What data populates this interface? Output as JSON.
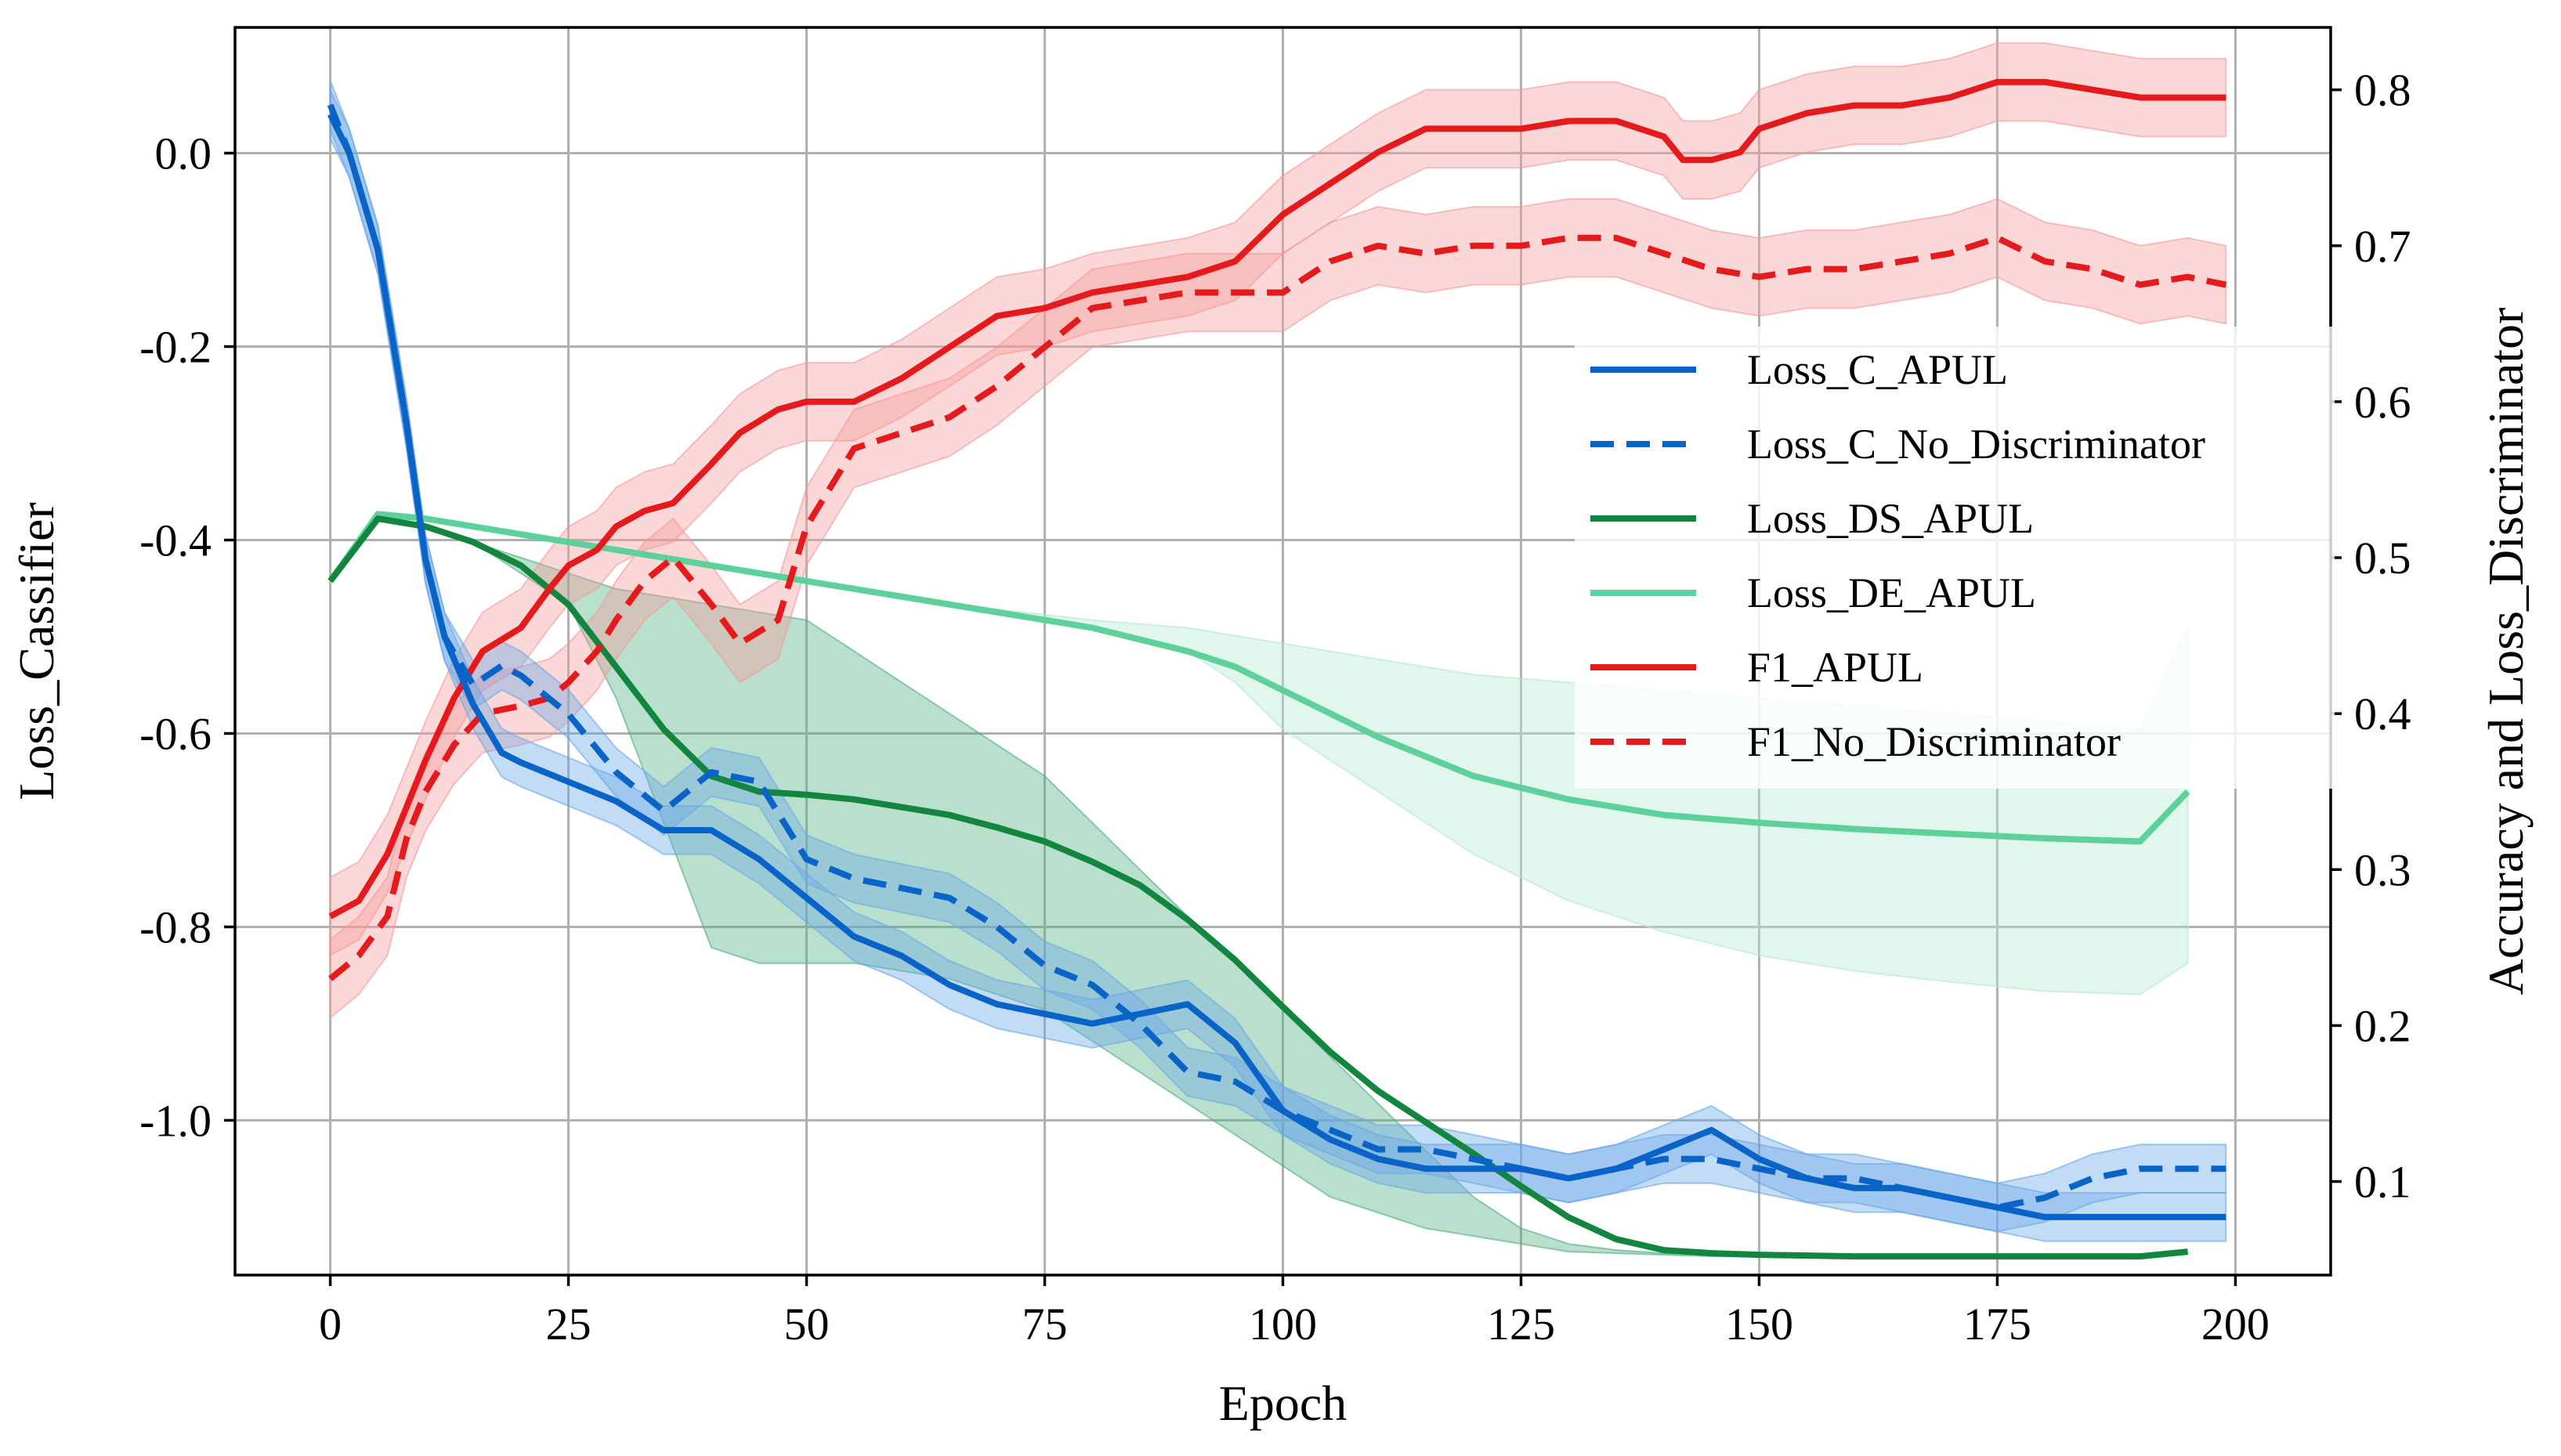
{
  "chart_data": {
    "type": "line",
    "xlabel": "Epoch",
    "ylabel_left": "Loss_Cassifier",
    "ylabel_right": "Accuracy and Loss_Discriminator",
    "xlim": [
      -10,
      210
    ],
    "ylim_left": [
      -1.16,
      0.13
    ],
    "ylim_right": [
      0.04,
      0.84
    ],
    "x_ticks": [
      0,
      25,
      50,
      75,
      100,
      125,
      150,
      175,
      200
    ],
    "y_left_ticks": [
      0.0,
      -0.2,
      -0.4,
      -0.6,
      -0.8,
      -1.0
    ],
    "y_left_tick_labels": [
      "0.0",
      "-0.2",
      "-0.4",
      "-0.6",
      "-0.8",
      "-1.0"
    ],
    "y_right_ticks": [
      0.1,
      0.2,
      0.3,
      0.4,
      0.5,
      0.6,
      0.7,
      0.8
    ],
    "y_right_tick_labels": [
      "0.1",
      "0.2",
      "0.3",
      "0.4",
      "0.5",
      "0.6",
      "0.7",
      "0.8"
    ],
    "grid": true,
    "legend_position": "center-right",
    "series": [
      {
        "name": "Loss_C_APUL",
        "axis": "left",
        "color": "#0a64c8",
        "dash": false,
        "band_color": "#6aa8e6",
        "x": [
          0,
          2,
          5,
          8,
          10,
          12,
          15,
          18,
          20,
          25,
          30,
          35,
          40,
          45,
          50,
          55,
          60,
          65,
          70,
          75,
          80,
          85,
          90,
          95,
          100,
          105,
          110,
          115,
          120,
          125,
          130,
          135,
          140,
          145,
          150,
          155,
          160,
          165,
          170,
          175,
          180,
          185,
          190,
          195,
          199
        ],
        "y": [
          0.04,
          0.0,
          -0.1,
          -0.28,
          -0.42,
          -0.5,
          -0.57,
          -0.62,
          -0.63,
          -0.65,
          -0.67,
          -0.7,
          -0.7,
          -0.73,
          -0.77,
          -0.81,
          -0.83,
          -0.86,
          -0.88,
          -0.89,
          -0.9,
          -0.89,
          -0.88,
          -0.92,
          -0.99,
          -1.02,
          -1.04,
          -1.05,
          -1.05,
          -1.05,
          -1.06,
          -1.05,
          -1.03,
          -1.01,
          -1.04,
          -1.06,
          -1.07,
          -1.07,
          -1.08,
          -1.09,
          -1.1,
          -1.1,
          -1.1,
          -1.1,
          -1.1
        ],
        "band": 0.025
      },
      {
        "name": "Loss_C_No_Discriminator",
        "axis": "left",
        "color": "#0a64c8",
        "dash": true,
        "band_color": "#6aa8e6",
        "x": [
          0,
          2,
          5,
          8,
          10,
          12,
          15,
          18,
          20,
          25,
          30,
          35,
          40,
          45,
          50,
          55,
          60,
          65,
          70,
          75,
          80,
          85,
          90,
          95,
          100,
          105,
          110,
          115,
          120,
          125,
          130,
          135,
          140,
          145,
          150,
          155,
          160,
          165,
          170,
          175,
          180,
          185,
          190,
          195,
          199
        ],
        "y": [
          0.05,
          0.0,
          -0.1,
          -0.28,
          -0.42,
          -0.5,
          -0.55,
          -0.53,
          -0.54,
          -0.58,
          -0.64,
          -0.68,
          -0.64,
          -0.65,
          -0.73,
          -0.75,
          -0.76,
          -0.77,
          -0.8,
          -0.84,
          -0.86,
          -0.9,
          -0.95,
          -0.96,
          -0.99,
          -1.01,
          -1.03,
          -1.03,
          -1.04,
          -1.05,
          -1.06,
          -1.05,
          -1.04,
          -1.04,
          -1.05,
          -1.06,
          -1.06,
          -1.07,
          -1.08,
          -1.09,
          -1.08,
          -1.06,
          -1.05,
          -1.05,
          -1.05
        ],
        "band": 0.025
      },
      {
        "name": "Loss_DS_APUL",
        "axis": "right",
        "color": "#12853e",
        "dash": false,
        "band_color": "#4fae82",
        "x": [
          0,
          5,
          10,
          15,
          20,
          25,
          30,
          35,
          40,
          45,
          50,
          55,
          60,
          65,
          70,
          75,
          80,
          85,
          90,
          95,
          100,
          105,
          110,
          115,
          120,
          125,
          130,
          135,
          140,
          145,
          150,
          160,
          170,
          180,
          190,
          195
        ],
        "y": [
          0.485,
          0.525,
          0.52,
          0.51,
          0.495,
          0.47,
          0.43,
          0.39,
          0.36,
          0.35,
          0.348,
          0.345,
          0.34,
          0.335,
          0.327,
          0.318,
          0.305,
          0.29,
          0.268,
          0.242,
          0.212,
          0.183,
          0.158,
          0.138,
          0.118,
          0.097,
          0.077,
          0.063,
          0.056,
          0.054,
          0.053,
          0.052,
          0.052,
          0.052,
          0.052,
          0.055
        ],
        "band_lo": [
          0.485,
          0.525,
          0.52,
          0.51,
          0.49,
          0.47,
          0.41,
          0.33,
          0.25,
          0.24,
          0.24,
          0.24,
          0.235,
          0.23,
          0.22,
          0.21,
          0.19,
          0.17,
          0.15,
          0.13,
          0.11,
          0.09,
          0.08,
          0.07,
          0.065,
          0.06,
          0.055,
          0.054,
          0.053,
          0.052,
          0.052,
          0.052,
          0.052,
          0.052,
          0.052,
          0.055
        ],
        "band_hi": [
          0.485,
          0.525,
          0.52,
          0.51,
          0.5,
          0.49,
          0.48,
          0.475,
          0.47,
          0.465,
          0.46,
          0.44,
          0.42,
          0.4,
          0.38,
          0.36,
          0.33,
          0.3,
          0.27,
          0.24,
          0.21,
          0.18,
          0.15,
          0.12,
          0.09,
          0.07,
          0.06,
          0.056,
          0.054,
          0.053,
          0.053,
          0.052,
          0.052,
          0.052,
          0.052,
          0.055
        ]
      },
      {
        "name": "Loss_DE_APUL",
        "axis": "right",
        "color": "#5ed09b",
        "dash": false,
        "band_color": "#b5e8cf",
        "x": [
          0,
          5,
          10,
          20,
          30,
          40,
          50,
          60,
          70,
          80,
          90,
          95,
          100,
          110,
          120,
          130,
          140,
          150,
          160,
          170,
          180,
          190,
          195
        ],
        "y": [
          0.485,
          0.528,
          0.525,
          0.515,
          0.505,
          0.495,
          0.485,
          0.475,
          0.465,
          0.455,
          0.44,
          0.43,
          0.415,
          0.385,
          0.36,
          0.345,
          0.335,
          0.33,
          0.326,
          0.323,
          0.32,
          0.318,
          0.35
        ],
        "band_lo": [
          0.485,
          0.528,
          0.525,
          0.515,
          0.505,
          0.495,
          0.485,
          0.475,
          0.465,
          0.455,
          0.44,
          0.42,
          0.39,
          0.35,
          0.31,
          0.28,
          0.26,
          0.245,
          0.235,
          0.228,
          0.222,
          0.22,
          0.24
        ],
        "band_hi": [
          0.485,
          0.528,
          0.525,
          0.515,
          0.505,
          0.495,
          0.485,
          0.475,
          0.467,
          0.46,
          0.455,
          0.45,
          0.445,
          0.435,
          0.425,
          0.42,
          0.415,
          0.41,
          0.405,
          0.4,
          0.395,
          0.39,
          0.455
        ]
      },
      {
        "name": "F1_APUL",
        "axis": "right",
        "color": "#e41a1c",
        "dash": false,
        "band_color": "#f59a9a",
        "x": [
          0,
          3,
          6,
          8,
          10,
          13,
          16,
          20,
          23,
          25,
          28,
          30,
          33,
          36,
          40,
          43,
          47,
          50,
          55,
          60,
          65,
          70,
          75,
          80,
          85,
          90,
          95,
          100,
          105,
          110,
          115,
          120,
          125,
          130,
          135,
          140,
          142,
          145,
          148,
          150,
          155,
          160,
          165,
          170,
          175,
          180,
          185,
          190,
          195,
          199
        ],
        "y": [
          0.27,
          0.28,
          0.31,
          0.34,
          0.37,
          0.41,
          0.44,
          0.455,
          0.48,
          0.495,
          0.505,
          0.52,
          0.53,
          0.535,
          0.56,
          0.58,
          0.595,
          0.6,
          0.6,
          0.615,
          0.635,
          0.655,
          0.66,
          0.67,
          0.675,
          0.68,
          0.69,
          0.72,
          0.74,
          0.76,
          0.775,
          0.775,
          0.775,
          0.78,
          0.78,
          0.77,
          0.755,
          0.755,
          0.76,
          0.775,
          0.785,
          0.79,
          0.79,
          0.795,
          0.805,
          0.805,
          0.8,
          0.795,
          0.795,
          0.795
        ],
        "band": 0.025
      },
      {
        "name": "F1_No_Discriminator",
        "axis": "right",
        "color": "#e41a1c",
        "dash": true,
        "band_color": "#f59a9a",
        "x": [
          0,
          3,
          6,
          8,
          10,
          13,
          16,
          20,
          23,
          25,
          28,
          30,
          33,
          36,
          40,
          43,
          47,
          50,
          55,
          60,
          65,
          70,
          75,
          80,
          85,
          90,
          95,
          100,
          105,
          110,
          115,
          120,
          125,
          130,
          135,
          140,
          145,
          150,
          155,
          160,
          165,
          170,
          175,
          180,
          185,
          190,
          195,
          199
        ],
        "y": [
          0.23,
          0.245,
          0.27,
          0.32,
          0.35,
          0.38,
          0.4,
          0.405,
          0.41,
          0.42,
          0.44,
          0.46,
          0.485,
          0.5,
          0.47,
          0.445,
          0.46,
          0.52,
          0.57,
          0.58,
          0.59,
          0.61,
          0.635,
          0.66,
          0.665,
          0.67,
          0.67,
          0.67,
          0.69,
          0.7,
          0.695,
          0.7,
          0.7,
          0.705,
          0.705,
          0.695,
          0.685,
          0.68,
          0.685,
          0.685,
          0.69,
          0.695,
          0.705,
          0.69,
          0.685,
          0.675,
          0.68,
          0.675
        ],
        "band": 0.025
      }
    ]
  },
  "colors": {
    "loss_c": "#0a64c8",
    "loss_ds": "#12853e",
    "loss_de": "#5ed09b",
    "f1": "#e41a1c"
  }
}
